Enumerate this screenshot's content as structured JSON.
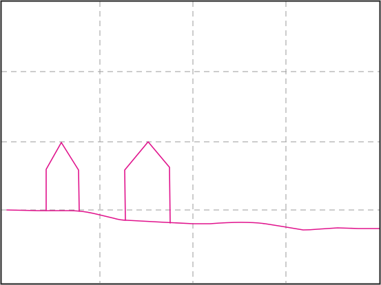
{
  "canvas": {
    "background": "#ffffff",
    "border_color": "#222222",
    "grid_color": "#9a9a9a",
    "stroke_color": "#e0128c",
    "grid_lines": "dashed"
  },
  "drawing": {
    "shapes": [
      "ground-line",
      "house-left",
      "house-right"
    ]
  }
}
